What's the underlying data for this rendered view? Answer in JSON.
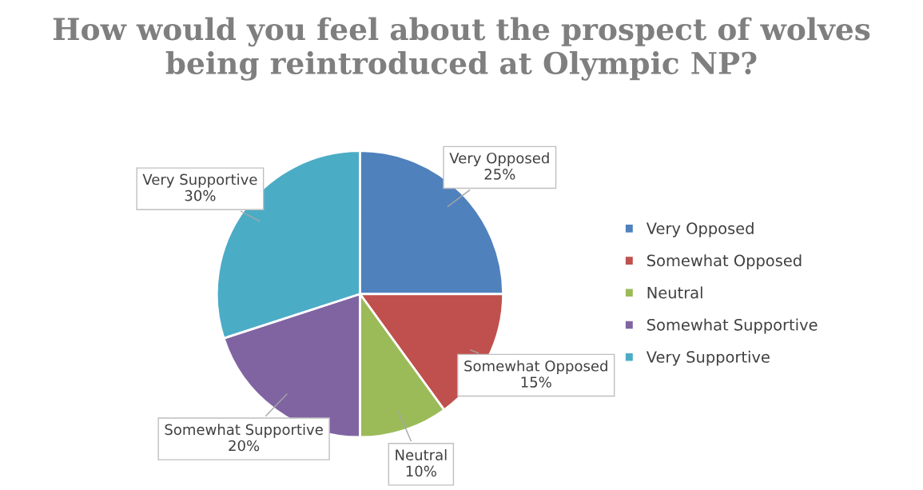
{
  "chart_data": {
    "type": "pie",
    "title": "How would you feel about the prospect of wolves being reintroduced at Olympic NP?",
    "categories": [
      "Very Opposed",
      "Somewhat Opposed",
      "Neutral",
      "Somewhat Supportive",
      "Very Supportive"
    ],
    "values": [
      25,
      15,
      10,
      20,
      30
    ],
    "colors": [
      "#4f81bd",
      "#c0504d",
      "#9bbb59",
      "#8064a2",
      "#4bacc6"
    ],
    "value_labels": [
      "25%",
      "15%",
      "10%",
      "20%",
      "30%"
    ],
    "legend": "right"
  }
}
